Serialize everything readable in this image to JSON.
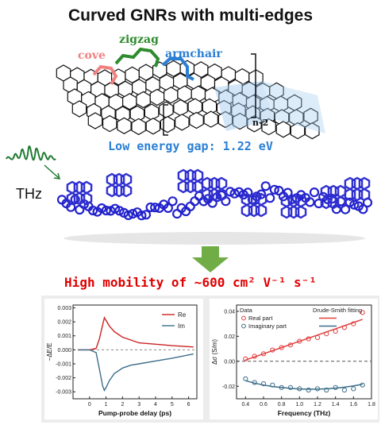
{
  "title": "Curved GNRs with multi-edges",
  "edges": {
    "cove": "cove",
    "zigzag": "zigzag",
    "armchair": "armchair"
  },
  "repeat_label": "n-2",
  "energy_gap": "Low energy gap: 1.22 eV",
  "thz_label": "THz",
  "mobility": "High mobility of ~600 cm² V⁻¹ s⁻¹",
  "colors": {
    "cove": "#f08080",
    "zigzag": "#2e8b2e",
    "armchair": "#2a7fd4",
    "mobility": "#e00000",
    "arrow": "#70ad47"
  },
  "chart_data": [
    {
      "type": "line",
      "title": "",
      "xlabel": "Pump-probe delay (ps)",
      "ylabel": "−ΔE/E",
      "xlim": [
        -1,
        6.5
      ],
      "ylim": [
        -0.0035,
        0.0032
      ],
      "xticks": [
        "0",
        "1",
        "2",
        "3",
        "4",
        "5",
        "6"
      ],
      "yticks": [
        "0.003",
        "0.002",
        "0.001",
        "0.000",
        "-0.001",
        "-0.002",
        "-0.003"
      ],
      "legend_position": "top-right",
      "series": [
        {
          "name": "Re",
          "color": "#cc2222",
          "x": [
            -0.7,
            0,
            0.4,
            0.6,
            0.8,
            0.9,
            1.0,
            1.2,
            1.5,
            2,
            2.5,
            3,
            4,
            5,
            6.3
          ],
          "y": [
            0,
            0,
            0.0001,
            0.0008,
            0.0018,
            0.0023,
            0.0021,
            0.0017,
            0.0013,
            0.0009,
            0.0007,
            0.0005,
            0.0004,
            0.0003,
            0.0002
          ]
        },
        {
          "name": "Im",
          "color": "#3d6e8a",
          "x": [
            -0.7,
            0,
            0.4,
            0.6,
            0.8,
            0.9,
            1.0,
            1.2,
            1.5,
            2,
            2.5,
            3,
            4,
            5,
            6.3
          ],
          "y": [
            0,
            0,
            -0.0002,
            -0.0014,
            -0.0026,
            -0.0029,
            -0.0027,
            -0.0022,
            -0.0017,
            -0.0013,
            -0.0011,
            -0.001,
            -0.0008,
            -0.0006,
            -0.0003
          ]
        }
      ]
    },
    {
      "type": "scatter",
      "title": "",
      "xlabel": "Frequency (THz)",
      "ylabel": "Δσ (S/m)",
      "xlim": [
        0.3,
        1.8
      ],
      "ylim": [
        -0.03,
        0.045
      ],
      "xticks": [
        "0.4",
        "0.6",
        "0.8",
        "1.0",
        "1.2",
        "1.4",
        "1.6",
        "1.8"
      ],
      "yticks": [
        "0.04",
        "0.02",
        "0.00",
        "-0.02"
      ],
      "legend_headers": [
        "Data",
        "Drude-Smith fitting"
      ],
      "legend_position": "top-left",
      "series": [
        {
          "name": "Real part",
          "color": "#e04040",
          "x": [
            0.4,
            0.5,
            0.6,
            0.7,
            0.8,
            0.9,
            1.0,
            1.1,
            1.2,
            1.3,
            1.4,
            1.5,
            1.6,
            1.7
          ],
          "y": [
            0.002,
            0.004,
            0.006,
            0.009,
            0.011,
            0.013,
            0.016,
            0.018,
            0.019,
            0.022,
            0.024,
            0.027,
            0.03,
            0.039
          ],
          "fit": [
            0.001,
            0.0035,
            0.006,
            0.0085,
            0.011,
            0.0135,
            0.016,
            0.0185,
            0.021,
            0.0235,
            0.026,
            0.0285,
            0.031,
            0.0335
          ]
        },
        {
          "name": "Imaginary part",
          "color": "#3d6e8a",
          "x": [
            0.4,
            0.5,
            0.6,
            0.7,
            0.8,
            0.9,
            1.0,
            1.1,
            1.2,
            1.3,
            1.4,
            1.5,
            1.6,
            1.7
          ],
          "y": [
            -0.014,
            -0.017,
            -0.018,
            -0.019,
            -0.021,
            -0.021,
            -0.022,
            -0.023,
            -0.022,
            -0.023,
            -0.021,
            -0.023,
            -0.022,
            -0.019
          ],
          "fit": [
            -0.0155,
            -0.0175,
            -0.019,
            -0.0202,
            -0.021,
            -0.0217,
            -0.0221,
            -0.0223,
            -0.0223,
            -0.022,
            -0.0215,
            -0.0207,
            -0.0197,
            -0.0184
          ]
        }
      ]
    }
  ]
}
